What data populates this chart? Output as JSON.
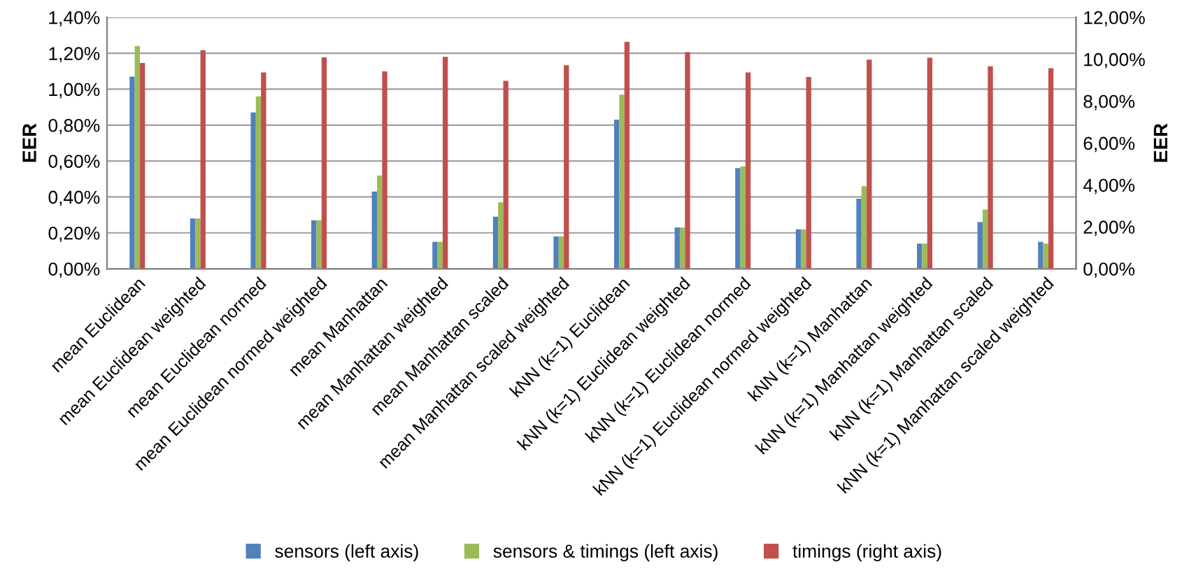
{
  "chart_data": {
    "type": "bar",
    "ylabel": "EER",
    "y2label": "EER",
    "categories": [
      "mean Euclidean",
      "mean Euclidean weighted",
      "mean Euclidean normed",
      "mean Euclidean normed weighted",
      "mean Manhattan",
      "mean Manhattan weighted",
      "mean Manhattan scaled",
      "mean Manhattan scaled weighted",
      "kNN (k=1) Euclidean",
      "kNN (k=1) Euclidean weighted",
      "kNN (k=1) Euclidean normed",
      "kNN (k=1) Euclidean normed weighted",
      "kNN (k=1) Manhattan",
      "kNN (k=1) Manhattan weighted",
      "kNN (k=1) Manhattan scaled",
      "kNN (k=1) Manhattan scaled weighted"
    ],
    "series": [
      {
        "name": "sensors (left axis)",
        "color": "#4f81bd",
        "values": [
          1.07,
          0.28,
          0.87,
          0.27,
          0.43,
          0.15,
          0.29,
          0.18,
          0.83,
          0.23,
          0.56,
          0.22,
          0.39,
          0.14,
          0.26,
          0.15
        ]
      },
      {
        "name": "sensors & timings (left axis)",
        "color": "#9bbb59",
        "values": [
          1.24,
          0.28,
          0.96,
          0.27,
          0.52,
          0.15,
          0.37,
          0.18,
          0.97,
          0.23,
          0.57,
          0.22,
          0.46,
          0.14,
          0.33,
          0.14
        ]
      },
      {
        "name": "timings (right axis)",
        "color": "#c0504d",
        "axis": "y2",
        "values": [
          9.82,
          10.43,
          9.37,
          10.09,
          9.42,
          10.11,
          8.97,
          9.71,
          10.83,
          10.34,
          9.37,
          9.15,
          9.98,
          10.07,
          9.66,
          9.57
        ]
      }
    ],
    "ylim": [
      0,
      1.4
    ],
    "yticks": [
      {
        "value": 0,
        "label": "0,00%"
      },
      {
        "value": 0.2,
        "label": "0,20%"
      },
      {
        "value": 0.4,
        "label": "0,40%"
      },
      {
        "value": 0.6,
        "label": "0,60%"
      },
      {
        "value": 0.8,
        "label": "0,80%"
      },
      {
        "value": 1.0,
        "label": "1,00%"
      },
      {
        "value": 1.2,
        "label": "1,20%"
      },
      {
        "value": 1.4,
        "label": "1,40%"
      }
    ],
    "y2lim": [
      0,
      12
    ],
    "y2ticks": [
      {
        "value": 0,
        "label": "0,00%"
      },
      {
        "value": 2,
        "label": "2,00%"
      },
      {
        "value": 4,
        "label": "4,00%"
      },
      {
        "value": 6,
        "label": "6,00%"
      },
      {
        "value": 8,
        "label": "8,00%"
      },
      {
        "value": 10,
        "label": "10,00%"
      },
      {
        "value": 12,
        "label": "12,00%"
      }
    ],
    "grid": "y",
    "legend": "bottom"
  }
}
